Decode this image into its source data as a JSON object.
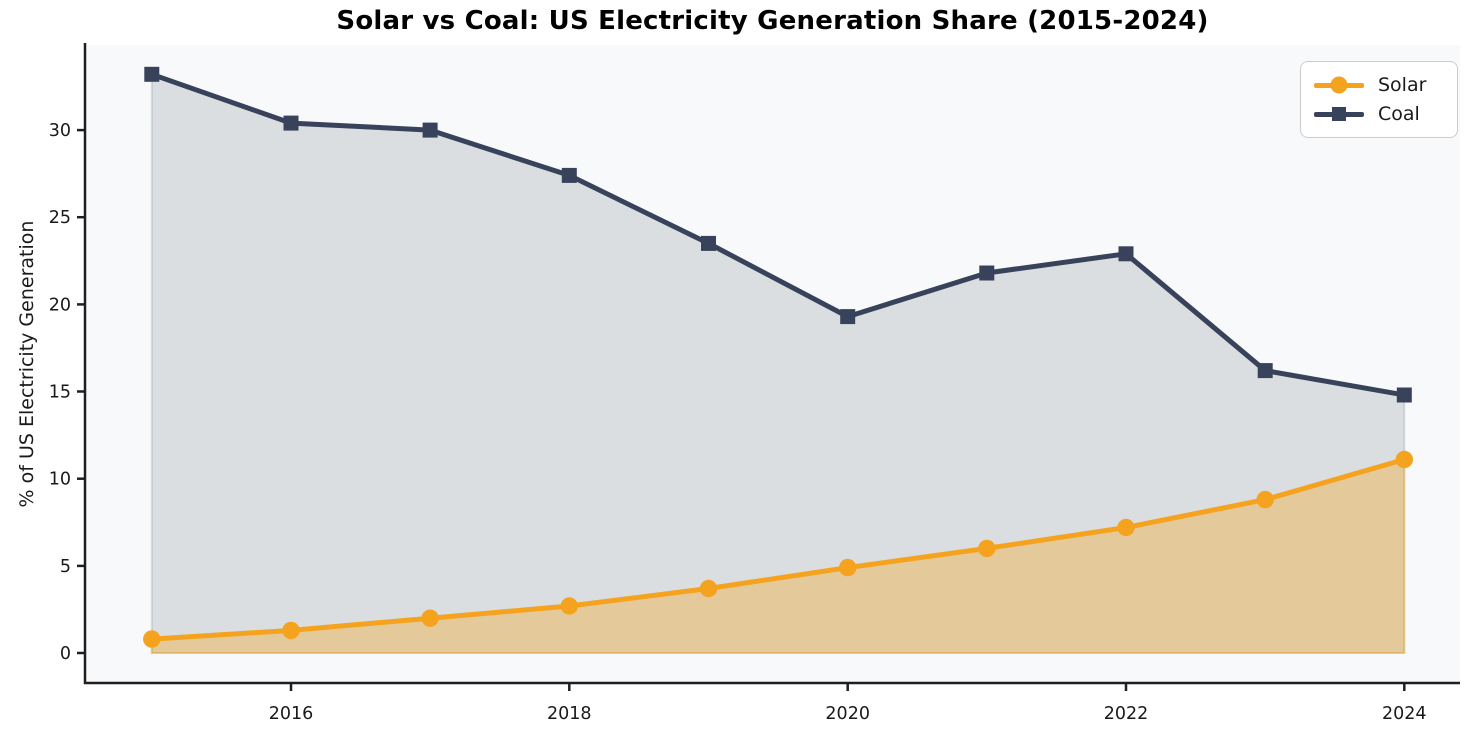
{
  "title": "Solar vs Coal: US Electricity Generation Share (2015-2024)",
  "colors": {
    "solar": "#F5A31F",
    "coal": "#38425A",
    "solar_fill": "rgba(245,163,31,0.36)",
    "coal_fill": "rgba(56,66,90,0.15)",
    "axis": "#1f1f1f",
    "tick_label": "#1a1a1a",
    "plot_bg": "#F8F9FA",
    "figure_bg": "#FFFFFF",
    "legend_border": "#CCCCCC"
  },
  "chart_data": {
    "type": "line",
    "title": "Solar vs Coal: US Electricity Generation Share (2015-2024)",
    "xlabel": "",
    "ylabel": "% of US Electricity Generation",
    "x": [
      2015,
      2016,
      2017,
      2018,
      2019,
      2020,
      2021,
      2022,
      2023,
      2024
    ],
    "series": [
      {
        "name": "Solar",
        "marker": "circle",
        "color": "#F5A31F",
        "values": [
          0.8,
          1.3,
          2.0,
          2.7,
          3.7,
          4.9,
          6.0,
          7.2,
          8.8,
          11.1
        ]
      },
      {
        "name": "Coal",
        "marker": "square",
        "color": "#38425A",
        "values": [
          33.2,
          30.4,
          30.0,
          27.4,
          23.5,
          19.3,
          21.8,
          22.9,
          16.2,
          14.8
        ]
      }
    ],
    "xticks": [
      2016,
      2018,
      2020,
      2022,
      2024
    ],
    "xtick_labels": [
      "2016",
      "2018",
      "2020",
      "2022",
      "2024"
    ],
    "yticks": [
      0,
      5,
      10,
      15,
      20,
      25,
      30
    ],
    "ytick_labels": [
      "0",
      "5",
      "10",
      "15",
      "20",
      "25",
      "30"
    ],
    "xlim": [
      2014.52,
      2024.4
    ],
    "ylim": [
      -1.72,
      34.88
    ],
    "grid": false,
    "area_fill": true,
    "fill_baseline": 0,
    "legend_position": "upper right",
    "legend_labels": [
      "Solar",
      "Coal"
    ]
  }
}
